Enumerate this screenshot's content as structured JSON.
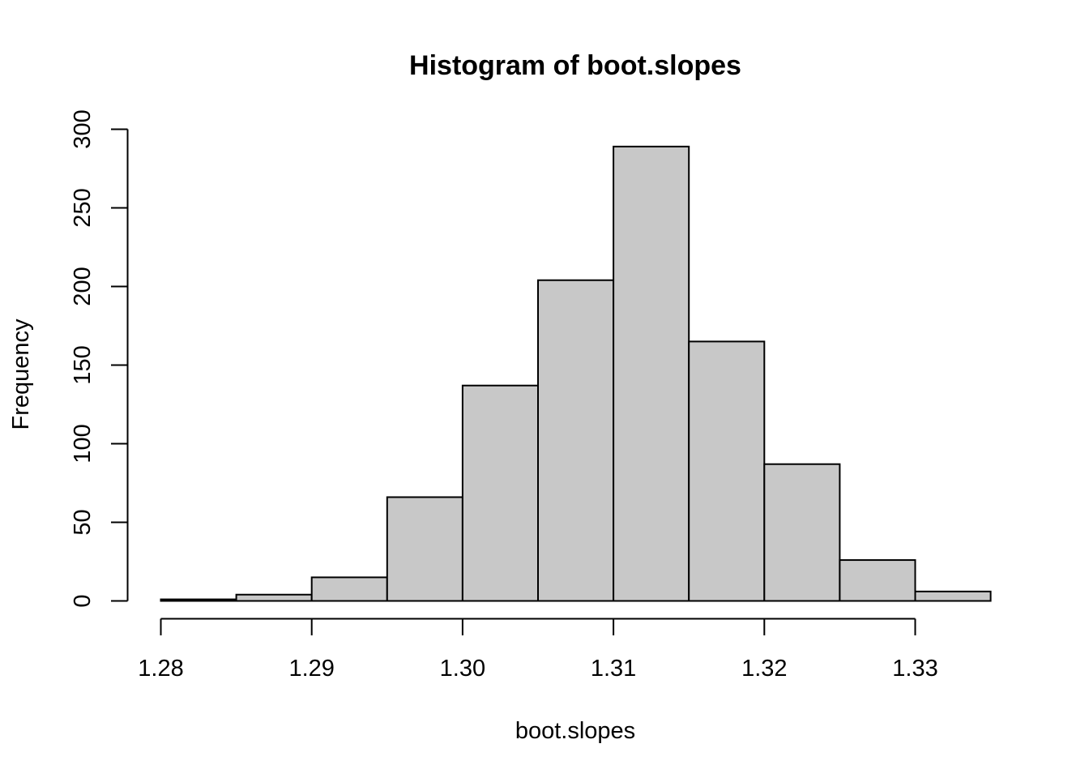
{
  "chart_data": {
    "type": "bar",
    "title": "Histogram of boot.slopes",
    "xlabel": "boot.slopes",
    "ylabel": "Frequency",
    "bins": [
      {
        "start": 1.28,
        "end": 1.285,
        "count": 1
      },
      {
        "start": 1.285,
        "end": 1.29,
        "count": 4
      },
      {
        "start": 1.29,
        "end": 1.295,
        "count": 15
      },
      {
        "start": 1.295,
        "end": 1.3,
        "count": 66
      },
      {
        "start": 1.3,
        "end": 1.305,
        "count": 137
      },
      {
        "start": 1.305,
        "end": 1.31,
        "count": 204
      },
      {
        "start": 1.31,
        "end": 1.315,
        "count": 289
      },
      {
        "start": 1.315,
        "end": 1.32,
        "count": 165
      },
      {
        "start": 1.32,
        "end": 1.325,
        "count": 87
      },
      {
        "start": 1.325,
        "end": 1.33,
        "count": 26
      },
      {
        "start": 1.33,
        "end": 1.335,
        "count": 6
      }
    ],
    "xlim": [
      1.28,
      1.335
    ],
    "ylim": [
      0,
      300
    ],
    "x_ticks": [
      "1.28",
      "1.29",
      "1.30",
      "1.31",
      "1.32",
      "1.33"
    ],
    "y_ticks": [
      "0",
      "50",
      "100",
      "150",
      "200",
      "250",
      "300"
    ],
    "grid": false,
    "bar_color": "#c8c8c8",
    "edge_color": "#000000"
  }
}
